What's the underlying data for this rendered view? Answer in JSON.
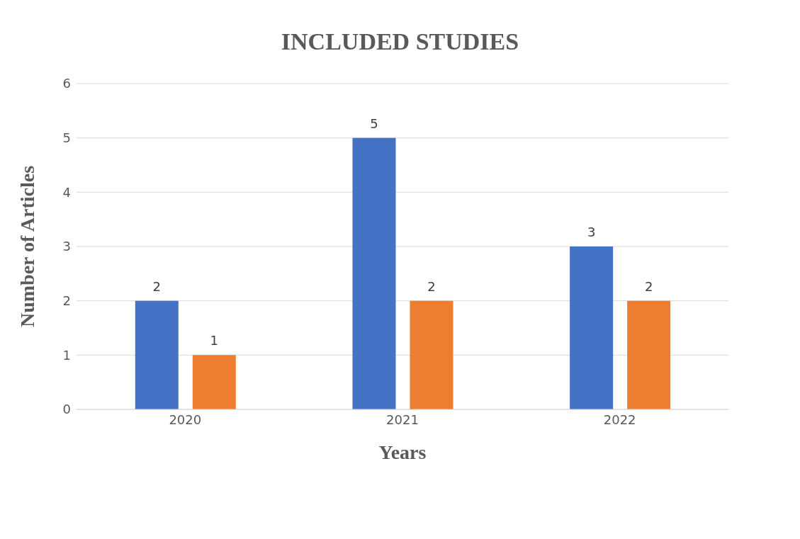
{
  "chart_data": {
    "type": "bar",
    "title": "INCLUDED STUDIES",
    "xlabel": "Years",
    "ylabel": "Number of Articles",
    "categories": [
      "2020",
      "2021",
      "2022"
    ],
    "series": [
      {
        "color": "#4472c4",
        "values": [
          2,
          5,
          3
        ]
      },
      {
        "color": "#ed7d31",
        "values": [
          1,
          2,
          2
        ]
      }
    ],
    "ylim": [
      0,
      6
    ],
    "yticks": [
      0,
      1,
      2,
      3,
      4,
      5,
      6
    ],
    "grid": "y",
    "data_labels": true,
    "legend": false
  }
}
